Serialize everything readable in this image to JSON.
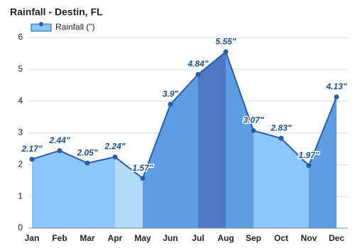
{
  "chart_data": {
    "type": "area",
    "title": "Rainfall - Destin, FL",
    "categories": [
      "Jan",
      "Feb",
      "Mar",
      "Apr",
      "May",
      "Jun",
      "Jul",
      "Aug",
      "Sep",
      "Oct",
      "Nov",
      "Dec"
    ],
    "series": [
      {
        "name": "Rainfall (\")",
        "color": "#2a5ca8",
        "values": [
          2.17,
          2.44,
          2.05,
          2.24,
          1.57,
          3.9,
          4.84,
          5.55,
          3.07,
          2.83,
          1.97,
          4.13
        ],
        "value_labels": [
          "2.17\"",
          "2.44\"",
          "2.05\"",
          "2.24\"",
          "1.57\"",
          "3.9\"",
          "4.84\"",
          "5.55\"",
          "3.07\"",
          "2.83\"",
          "1.97\"",
          "4.13\""
        ],
        "segment_colors": [
          "#8ac6f7",
          "#8ac6f7",
          "#8ac6f7",
          "#b3dafb",
          "#5d9ee2",
          "#5d9ee2",
          "#4c78c4",
          "#5d9ee2",
          "#8ac6f7",
          "#8ac6f7",
          "#5d9ee2"
        ]
      }
    ],
    "ylim": [
      0,
      6
    ],
    "yticks": [
      0,
      1,
      2,
      3,
      4,
      5,
      6
    ],
    "grid": true,
    "legend": "top-left"
  }
}
